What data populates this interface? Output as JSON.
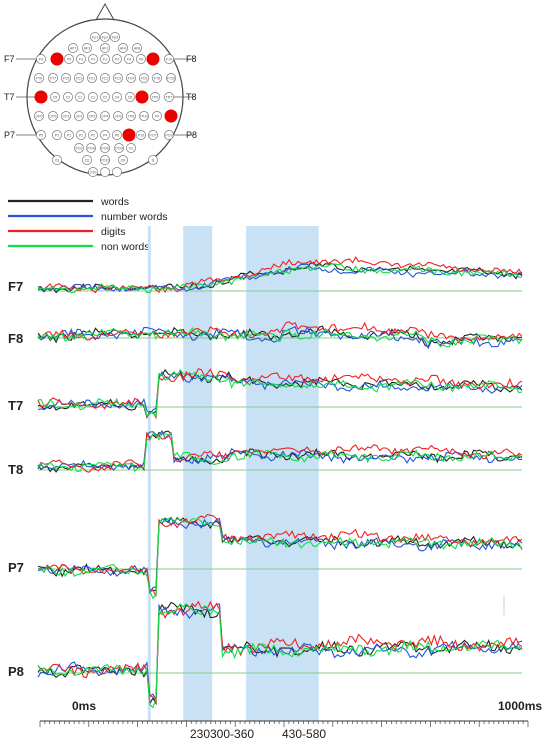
{
  "montage": {
    "side_labels": {
      "f7": "F7",
      "f8": "F8",
      "t7": "T7",
      "t8": "T8",
      "p7": "P7",
      "p8": "P8"
    },
    "electrodes": [
      "Fp1",
      "Fpz",
      "Fp2",
      "AF7",
      "AF3",
      "AFz",
      "AF4",
      "AF8",
      "F9",
      "F7",
      "F5",
      "F3",
      "F1",
      "Fz",
      "F2",
      "F4",
      "F6",
      "F8",
      "F10",
      "FT9",
      "FT7",
      "FC5",
      "FC3",
      "FC1",
      "FCz",
      "FC2",
      "FC4",
      "FC6",
      "FT8",
      "FT10",
      "T7",
      "C5",
      "C3",
      "C1",
      "Cz",
      "C2",
      "C4",
      "C6",
      "T8",
      "TP9",
      "TP7",
      "CP5",
      "CP3",
      "CP1",
      "CPz",
      "CP2",
      "CP4",
      "CP6",
      "TP8",
      "TP10",
      "P9",
      "P7",
      "P5",
      "P3",
      "P1",
      "Pz",
      "P2",
      "P4",
      "P6",
      "P8",
      "P10",
      "PO7",
      "PO3",
      "POz",
      "PO4",
      "PO8",
      "PO9",
      "O1",
      "Oz",
      "O2",
      "PO10",
      "O9",
      "Iz",
      "O10"
    ],
    "highlighted": [
      "F7",
      "F8",
      "T7",
      "T8",
      "P7",
      "P8"
    ],
    "highlight_color": "#ee0000"
  },
  "chart_data": {
    "type": "line",
    "legend": [
      {
        "name": "words",
        "color": "#222222"
      },
      {
        "name": "number words",
        "color": "#2255dd"
      },
      {
        "name": "digits",
        "color": "#ee2222"
      },
      {
        "name": "non words",
        "color": "#11dd44"
      }
    ],
    "channels": [
      "F7",
      "F8",
      "T7",
      "T8",
      "P7",
      "P8"
    ],
    "x_range_ms": [
      0,
      1000
    ],
    "x_start_label": "0ms",
    "x_end_label": "1000ms",
    "highlight_windows": [
      {
        "label": "230",
        "start": 227,
        "end": 233
      },
      {
        "label": "300-360",
        "start": 300,
        "end": 360
      },
      {
        "label": "430-580",
        "start": 430,
        "end": 580
      }
    ],
    "window_color": "#c9e1f5",
    "baseline_color": "#88cc88"
  }
}
